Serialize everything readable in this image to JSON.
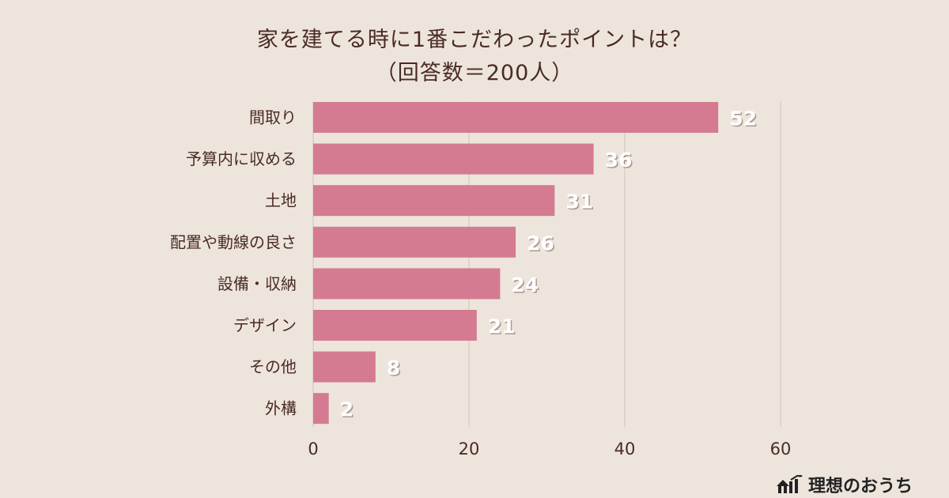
{
  "chart_data": {
    "type": "bar",
    "orientation": "horizontal",
    "title": "家を建てる時に1番こだわったポイントは？",
    "subtitle": "（回答数＝200人）",
    "categories": [
      "間取り",
      "予算内に収める",
      "土地",
      "配置や動線の良さ",
      "設備・収納",
      "デザイン",
      "その他",
      "外構"
    ],
    "values": [
      52,
      36,
      31,
      26,
      24,
      21,
      8,
      2
    ],
    "xlim": [
      0,
      60
    ],
    "xticks": [
      0,
      20,
      40,
      60
    ],
    "grid": true,
    "xlabel": "",
    "ylabel": ""
  },
  "colors": {
    "background": "#ede5dc",
    "bar": "#d47b91",
    "grid": "#cfc3b6",
    "text": "#4a2a25",
    "value_label": "#ffffff",
    "value_label_shadow": "#7a5a55"
  },
  "brand": {
    "name": "理想のおうち",
    "icon": "house-chart-icon"
  }
}
